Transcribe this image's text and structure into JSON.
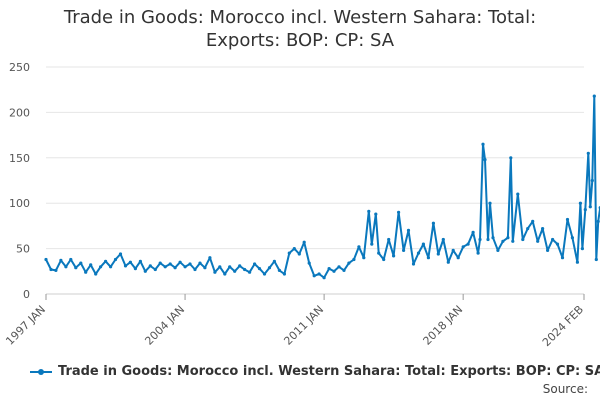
{
  "chart_data": {
    "type": "line",
    "title_lines": [
      "Trade in Goods: Morocco incl. Western Sahara: Total:",
      "Exports: BOP: CP: SA"
    ],
    "xlabel": "",
    "ylabel": "",
    "ylim": [
      0,
      250
    ],
    "yticks": [
      0,
      50,
      100,
      150,
      200,
      250
    ],
    "xlim": [
      1997.0,
      2024.083
    ],
    "xticks": [
      {
        "label": "1997 JAN",
        "value": 1997.0
      },
      {
        "label": "2004 JAN",
        "value": 2004.0
      },
      {
        "label": "2011 JAN",
        "value": 2011.0
      },
      {
        "label": "2018 JAN",
        "value": 2018.0
      },
      {
        "label": "2024 FEB",
        "value": 2024.083
      }
    ],
    "grid": true,
    "legend_position": "bottom",
    "series": [
      {
        "name": "Trade in Goods: Morocco incl. Western Sahara: Total: Exports: BOP: CP: SA",
        "color": "#0a78bd",
        "points": [
          [
            1997.0,
            38
          ],
          [
            1997.25,
            27
          ],
          [
            1997.5,
            26
          ],
          [
            1997.75,
            37
          ],
          [
            1998.0,
            30
          ],
          [
            1998.25,
            38
          ],
          [
            1998.5,
            29
          ],
          [
            1998.75,
            34
          ],
          [
            1999.0,
            24
          ],
          [
            1999.25,
            32
          ],
          [
            1999.5,
            22
          ],
          [
            1999.75,
            30
          ],
          [
            2000.0,
            36
          ],
          [
            2000.25,
            30
          ],
          [
            2000.5,
            38
          ],
          [
            2000.75,
            44
          ],
          [
            2001.0,
            31
          ],
          [
            2001.25,
            35
          ],
          [
            2001.5,
            28
          ],
          [
            2001.75,
            36
          ],
          [
            2002.0,
            25
          ],
          [
            2002.25,
            31
          ],
          [
            2002.5,
            27
          ],
          [
            2002.75,
            34
          ],
          [
            2003.0,
            30
          ],
          [
            2003.25,
            33
          ],
          [
            2003.5,
            29
          ],
          [
            2003.75,
            35
          ],
          [
            2004.0,
            30
          ],
          [
            2004.25,
            33
          ],
          [
            2004.5,
            27
          ],
          [
            2004.75,
            34
          ],
          [
            2005.0,
            29
          ],
          [
            2005.25,
            40
          ],
          [
            2005.5,
            24
          ],
          [
            2005.75,
            30
          ],
          [
            2006.0,
            22
          ],
          [
            2006.25,
            30
          ],
          [
            2006.5,
            25
          ],
          [
            2006.75,
            31
          ],
          [
            2007.0,
            27
          ],
          [
            2007.25,
            24
          ],
          [
            2007.5,
            33
          ],
          [
            2007.75,
            28
          ],
          [
            2008.0,
            22
          ],
          [
            2008.25,
            29
          ],
          [
            2008.5,
            36
          ],
          [
            2008.75,
            26
          ],
          [
            2009.0,
            22
          ],
          [
            2009.25,
            45
          ],
          [
            2009.5,
            50
          ],
          [
            2009.75,
            44
          ],
          [
            2010.0,
            57
          ],
          [
            2010.25,
            34
          ],
          [
            2010.5,
            20
          ],
          [
            2010.75,
            22
          ],
          [
            2011.0,
            18
          ],
          [
            2011.25,
            28
          ],
          [
            2011.5,
            25
          ],
          [
            2011.75,
            30
          ],
          [
            2012.0,
            26
          ],
          [
            2012.25,
            34
          ],
          [
            2012.5,
            38
          ],
          [
            2012.75,
            52
          ],
          [
            2013.0,
            40
          ],
          [
            2013.25,
            91
          ],
          [
            2013.4,
            55
          ],
          [
            2013.6,
            88
          ],
          [
            2013.75,
            45
          ],
          [
            2014.0,
            38
          ],
          [
            2014.25,
            60
          ],
          [
            2014.5,
            42
          ],
          [
            2014.75,
            90
          ],
          [
            2015.0,
            48
          ],
          [
            2015.25,
            70
          ],
          [
            2015.5,
            33
          ],
          [
            2015.75,
            45
          ],
          [
            2016.0,
            55
          ],
          [
            2016.25,
            40
          ],
          [
            2016.5,
            78
          ],
          [
            2016.75,
            44
          ],
          [
            2017.0,
            60
          ],
          [
            2017.25,
            35
          ],
          [
            2017.5,
            48
          ],
          [
            2017.75,
            40
          ],
          [
            2018.0,
            52
          ],
          [
            2018.25,
            55
          ],
          [
            2018.5,
            68
          ],
          [
            2018.75,
            45
          ],
          [
            2018.85,
            60
          ],
          [
            2019.0,
            165
          ],
          [
            2019.1,
            148
          ],
          [
            2019.25,
            60
          ],
          [
            2019.35,
            100
          ],
          [
            2019.5,
            62
          ],
          [
            2019.75,
            48
          ],
          [
            2020.0,
            58
          ],
          [
            2020.25,
            62
          ],
          [
            2020.4,
            150
          ],
          [
            2020.5,
            58
          ],
          [
            2020.75,
            110
          ],
          [
            2021.0,
            60
          ],
          [
            2021.25,
            72
          ],
          [
            2021.5,
            80
          ],
          [
            2021.75,
            58
          ],
          [
            2022.0,
            72
          ],
          [
            2022.25,
            48
          ],
          [
            2022.5,
            60
          ],
          [
            2022.75,
            55
          ],
          [
            2023.0,
            40
          ],
          [
            2023.25,
            82
          ],
          [
            2023.5,
            62
          ],
          [
            2023.75,
            35
          ],
          [
            2023.9,
            100
          ],
          [
            2024.0,
            50
          ],
          [
            2024.15,
            93
          ],
          [
            2024.3,
            155
          ],
          [
            2024.4,
            96
          ],
          [
            2024.5,
            125
          ],
          [
            2024.6,
            218
          ],
          [
            2024.7,
            38
          ],
          [
            2024.8,
            80
          ],
          [
            2024.9,
            95
          ],
          [
            2025.0,
            88
          ],
          [
            2025.2,
            122
          ],
          [
            2025.35,
            72
          ],
          [
            2025.5,
            110
          ],
          [
            2025.6,
            66
          ]
        ]
      }
    ]
  },
  "legend": {
    "label": "Trade in Goods: Morocco incl. Western Sahara: Total: Exports: BOP: CP: SA"
  },
  "footer": {
    "source_label": "Source:"
  }
}
